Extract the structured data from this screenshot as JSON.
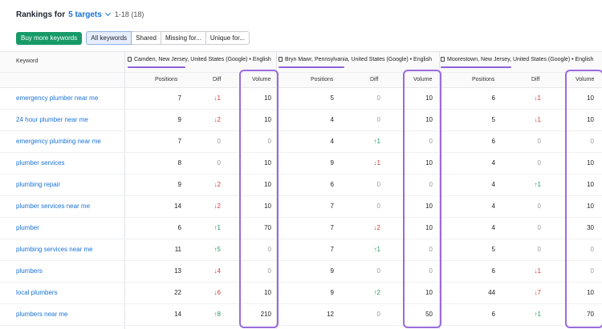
{
  "header": {
    "title": "Rankings for",
    "targets_link": "5 targets",
    "range": "1-18 (18)"
  },
  "toolbar": {
    "buy_label": "Buy more keywords",
    "tabs": [
      "All keywords",
      "Shared",
      "Missing for...",
      "Unique for..."
    ]
  },
  "table": {
    "keyword_header": "Keyword",
    "sub_headers": [
      "Positions",
      "Diff",
      "Volume"
    ],
    "targets": [
      "Camden, New Jersey, United States (Google) • English",
      "Bryn Mawr, Pennsylvania, United States (Google) • English",
      "Moorestown, New Jersey, United States (Google) • English"
    ],
    "rows": [
      {
        "keyword": "emergency plumber near me",
        "g": [
          {
            "pos": "7",
            "diff": "↓1",
            "vol": "10"
          },
          {
            "pos": "5",
            "diff": "0",
            "vol": "10"
          },
          {
            "pos": "6",
            "diff": "↓1",
            "vol": "10"
          }
        ]
      },
      {
        "keyword": "24 hour plumber near me",
        "g": [
          {
            "pos": "9",
            "diff": "↓2",
            "vol": "10"
          },
          {
            "pos": "4",
            "diff": "0",
            "vol": "10"
          },
          {
            "pos": "5",
            "diff": "↓1",
            "vol": "10"
          }
        ]
      },
      {
        "keyword": "emergency plumbing near me",
        "g": [
          {
            "pos": "7",
            "diff": "0",
            "vol": "0"
          },
          {
            "pos": "4",
            "diff": "↑1",
            "vol": "0"
          },
          {
            "pos": "6",
            "diff": "0",
            "vol": "0"
          }
        ]
      },
      {
        "keyword": "plumber services",
        "g": [
          {
            "pos": "8",
            "diff": "0",
            "vol": "10"
          },
          {
            "pos": "9",
            "diff": "↓1",
            "vol": "10"
          },
          {
            "pos": "4",
            "diff": "0",
            "vol": "10"
          }
        ]
      },
      {
        "keyword": "plumbing repair",
        "g": [
          {
            "pos": "9",
            "diff": "↓2",
            "vol": "10"
          },
          {
            "pos": "6",
            "diff": "0",
            "vol": "0"
          },
          {
            "pos": "4",
            "diff": "↑1",
            "vol": "10"
          }
        ]
      },
      {
        "keyword": "plumber services near me",
        "g": [
          {
            "pos": "14",
            "diff": "↓2",
            "vol": "10"
          },
          {
            "pos": "7",
            "diff": "0",
            "vol": "10"
          },
          {
            "pos": "4",
            "diff": "0",
            "vol": "10"
          }
        ]
      },
      {
        "keyword": "plumber",
        "g": [
          {
            "pos": "6",
            "diff": "↑1",
            "vol": "70"
          },
          {
            "pos": "7",
            "diff": "↓2",
            "vol": "10"
          },
          {
            "pos": "4",
            "diff": "0",
            "vol": "30"
          }
        ]
      },
      {
        "keyword": "plumbing services near me",
        "g": [
          {
            "pos": "11",
            "diff": "↑5",
            "vol": "0"
          },
          {
            "pos": "7",
            "diff": "↑1",
            "vol": "0"
          },
          {
            "pos": "5",
            "diff": "0",
            "vol": "0"
          }
        ]
      },
      {
        "keyword": "plumbers",
        "g": [
          {
            "pos": "13",
            "diff": "↓4",
            "vol": "0"
          },
          {
            "pos": "9",
            "diff": "0",
            "vol": "0"
          },
          {
            "pos": "6",
            "diff": "↓1",
            "vol": "0"
          }
        ]
      },
      {
        "keyword": "local plumbers",
        "g": [
          {
            "pos": "22",
            "diff": "↓6",
            "vol": "10"
          },
          {
            "pos": "9",
            "diff": "↑2",
            "vol": "10"
          },
          {
            "pos": "44",
            "diff": "↓7",
            "vol": "10"
          }
        ]
      },
      {
        "keyword": "plumbers near me",
        "g": [
          {
            "pos": "14",
            "diff": "↑8",
            "vol": "210"
          },
          {
            "pos": "12",
            "diff": "0",
            "vol": "50"
          },
          {
            "pos": "6",
            "diff": "↑1",
            "vol": "70"
          }
        ]
      }
    ]
  },
  "colors": {
    "accent_link": "#1a73d8",
    "buy_button": "#189a68",
    "highlight_box": "#9a6bdc",
    "diff_down": "#d63b3b",
    "diff_up": "#1f9a5e"
  }
}
